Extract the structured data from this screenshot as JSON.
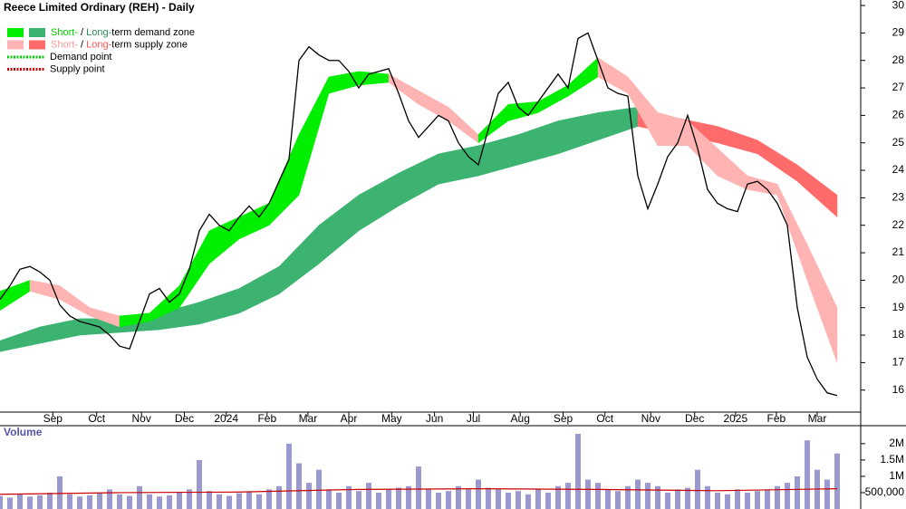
{
  "chart_data": [
    {
      "type": "line",
      "title": "Reece Limited Ordinary (REH) - Daily",
      "color": "#000000",
      "legend": {
        "position": "upper left",
        "items": [
          {
            "swatches": [
              "#00ee00",
              "#3cb371"
            ],
            "parts": [
              {
                "text": "Short-",
                "color": "#00cc00"
              },
              {
                "text": " / "
              },
              {
                "text": "Long-",
                "color": "#2e8b57"
              },
              {
                "text": "term demand zone"
              }
            ]
          },
          {
            "swatches": [
              "#ffb3b3",
              "#ff6b6b"
            ],
            "parts": [
              {
                "text": "Short-",
                "color": "#ff9999"
              },
              {
                "text": " / "
              },
              {
                "text": "Long-",
                "color": "#ff5555"
              },
              {
                "text": "term supply zone"
              }
            ]
          },
          {
            "line": "#00cc00",
            "parts": [
              {
                "text": "Demand point"
              }
            ]
          },
          {
            "line": "#cc0000",
            "parts": [
              {
                "text": "Supply point"
              }
            ]
          }
        ]
      },
      "x": [
        0,
        1,
        2,
        3,
        4,
        5,
        6,
        7,
        8,
        9,
        10,
        11,
        12,
        13,
        14,
        15,
        16,
        17,
        18,
        19,
        20,
        21,
        22,
        23,
        24,
        25,
        26,
        27,
        28,
        29,
        30,
        31,
        32,
        33,
        34,
        35,
        36,
        37,
        38,
        39,
        40,
        41,
        42,
        43,
        44,
        45,
        46,
        47,
        48,
        49,
        50,
        51,
        52,
        53,
        54,
        55,
        56,
        57,
        58,
        59,
        60,
        61,
        62,
        63,
        64,
        65,
        66,
        67,
        68,
        69,
        70,
        71,
        72,
        73,
        74,
        75,
        76,
        77,
        78,
        79,
        80,
        81,
        82,
        83,
        84
      ],
      "values": [
        19.3,
        19.8,
        20.4,
        20.5,
        20.3,
        20.0,
        19.1,
        18.7,
        18.5,
        18.4,
        18.3,
        18.0,
        17.6,
        17.5,
        18.5,
        19.5,
        19.7,
        19.2,
        19.5,
        20.4,
        21.8,
        22.4,
        22.0,
        21.8,
        22.3,
        22.7,
        22.3,
        22.8,
        23.6,
        24.4,
        28.0,
        28.5,
        28.2,
        28.0,
        28.0,
        27.6,
        27.0,
        27.5,
        27.6,
        27.7,
        26.8,
        25.8,
        25.2,
        25.6,
        26.0,
        25.8,
        25.0,
        24.5,
        24.2,
        25.5,
        26.8,
        27.2,
        26.3,
        26.0,
        26.5,
        27.0,
        27.5,
        27.0,
        28.8,
        29.0,
        28.0,
        27.0,
        26.8,
        26.7,
        23.8,
        22.6,
        23.5,
        24.5,
        25.0,
        26.0,
        24.8,
        23.3,
        22.8,
        22.6,
        22.5,
        23.5,
        23.6,
        23.3,
        22.8,
        22.0,
        19.0,
        17.2,
        16.4,
        15.9,
        15.8
      ],
      "bands": [
        {
          "x": [
            0,
            4,
            8,
            12,
            16,
            20,
            24,
            28,
            32,
            36,
            40,
            44,
            48,
            52,
            56,
            60,
            64,
            68,
            72,
            76,
            80,
            84
          ],
          "upper": [
            17.8,
            18.3,
            18.6,
            18.6,
            18.8,
            19.2,
            19.7,
            20.5,
            22.0,
            23.1,
            23.9,
            24.6,
            24.9,
            25.3,
            25.8,
            26.1,
            26.3,
            25.9,
            25.6,
            25.1,
            24.2,
            23.1
          ],
          "lower": [
            17.4,
            17.7,
            18.0,
            18.1,
            18.2,
            18.4,
            18.8,
            19.5,
            20.6,
            21.8,
            22.7,
            23.5,
            23.8,
            24.2,
            24.6,
            25.1,
            25.6,
            25.3,
            25.0,
            24.6,
            23.6,
            22.3
          ],
          "colors": [
            "#3cb371",
            "#3cb371",
            "#3cb371",
            "#3cb371",
            "#3cb371",
            "#3cb371",
            "#3cb371",
            "#3cb371",
            "#3cb371",
            "#3cb371",
            "#3cb371",
            "#3cb371",
            "#3cb371",
            "#3cb371",
            "#3cb371",
            "#3cb371",
            "#ff6b6b",
            "#ff6b6b",
            "#ff6b6b",
            "#ff6b6b",
            "#ff6b6b"
          ]
        },
        {
          "x": [
            0,
            3,
            6,
            9,
            12,
            15,
            18,
            21,
            24,
            27,
            30,
            33,
            36,
            39,
            42,
            45,
            48,
            51,
            54,
            57,
            60,
            63,
            66,
            69,
            72,
            75,
            78,
            81,
            84
          ],
          "upper": [
            19.6,
            20.0,
            19.8,
            19.0,
            18.7,
            18.8,
            19.8,
            21.8,
            22.3,
            22.8,
            25.3,
            27.4,
            27.6,
            27.5,
            26.9,
            26.3,
            25.3,
            26.4,
            26.5,
            27.1,
            28.1,
            27.4,
            26.1,
            25.8,
            24.8,
            23.8,
            23.5,
            21.3,
            19.0
          ],
          "lower": [
            18.9,
            19.6,
            19.3,
            18.7,
            18.3,
            18.5,
            19.0,
            20.6,
            21.5,
            22.0,
            23.1,
            26.8,
            27.1,
            27.2,
            26.4,
            25.8,
            25.0,
            25.8,
            26.1,
            26.7,
            27.4,
            26.8,
            24.9,
            24.9,
            23.8,
            23.3,
            23.1,
            20.0,
            17.0
          ],
          "colors": [
            "#00ee00",
            "#ffb3b3",
            "#ffb3b3",
            "#ffb3b3",
            "#00ee00",
            "#00ee00",
            "#00ee00",
            "#00ee00",
            "#00ee00",
            "#00ee00",
            "#00ee00",
            "#00ee00",
            "#00ee00",
            "#ffb3b3",
            "#ffb3b3",
            "#ffb3b3",
            "#00ee00",
            "#00ee00",
            "#00ee00",
            "#00ee00",
            "#ffb3b3",
            "#ffb3b3",
            "#ffb3b3",
            "#ffb3b3",
            "#ffb3b3",
            "#ffb3b3",
            "#ffb3b3",
            "#ffb3b3"
          ]
        }
      ],
      "xlim": [
        0,
        85
      ],
      "xticks": [
        {
          "value": 5.3,
          "label": "Sep"
        },
        {
          "value": 9.7,
          "label": "Oct"
        },
        {
          "value": 14.2,
          "label": "Nov"
        },
        {
          "value": 18.5,
          "label": "Dec"
        },
        {
          "value": 22.7,
          "label": "2024"
        },
        {
          "value": 26.8,
          "label": "Feb"
        },
        {
          "value": 30.9,
          "label": "Mar"
        },
        {
          "value": 35,
          "label": "Apr"
        },
        {
          "value": 39.3,
          "label": "May"
        },
        {
          "value": 43.6,
          "label": "Jun"
        },
        {
          "value": 47.5,
          "label": "Jul"
        },
        {
          "value": 52.2,
          "label": "Aug"
        },
        {
          "value": 56.5,
          "label": "Sep"
        },
        {
          "value": 60.7,
          "label": "Oct"
        },
        {
          "value": 65.3,
          "label": "Nov"
        },
        {
          "value": 69.7,
          "label": "Dec"
        },
        {
          "value": 73.8,
          "label": "2025"
        },
        {
          "value": 77.9,
          "label": "Feb"
        },
        {
          "value": 82,
          "label": "Mar"
        }
      ],
      "ylim": [
        15.2,
        30.2
      ],
      "yticks": [
        16,
        17,
        18,
        19,
        20,
        21,
        22,
        23,
        24,
        25,
        26,
        27,
        28,
        29,
        30
      ],
      "grid": false
    },
    {
      "type": "bar",
      "title": "Volume",
      "color": "#9a9ad0",
      "x": [
        0,
        1,
        2,
        3,
        4,
        5,
        6,
        7,
        8,
        9,
        10,
        11,
        12,
        13,
        14,
        15,
        16,
        17,
        18,
        19,
        20,
        21,
        22,
        23,
        24,
        25,
        26,
        27,
        28,
        29,
        30,
        31,
        32,
        33,
        34,
        35,
        36,
        37,
        38,
        39,
        40,
        41,
        42,
        43,
        44,
        45,
        46,
        47,
        48,
        49,
        50,
        51,
        52,
        53,
        54,
        55,
        56,
        57,
        58,
        59,
        60,
        61,
        62,
        63,
        64,
        65,
        66,
        67,
        68,
        69,
        70,
        71,
        72,
        73,
        74,
        75,
        76,
        77,
        78,
        79,
        80,
        81,
        82,
        83,
        84
      ],
      "values": [
        400000,
        350000,
        450000,
        380000,
        420000,
        500000,
        1000000,
        450000,
        380000,
        420000,
        500000,
        600000,
        450000,
        400000,
        700000,
        450000,
        380000,
        420000,
        500000,
        600000,
        1500000,
        550000,
        450000,
        400000,
        480000,
        520000,
        450000,
        600000,
        700000,
        2000000,
        1400000,
        800000,
        1200000,
        600000,
        500000,
        700000,
        550000,
        800000,
        500000,
        600000,
        650000,
        700000,
        1300000,
        600000,
        500000,
        550000,
        700000,
        600000,
        900000,
        650000,
        600000,
        500000,
        550000,
        450000,
        600000,
        500000,
        700000,
        800000,
        2300000,
        900000,
        800000,
        600000,
        550000,
        700000,
        900000,
        800000,
        700000,
        500000,
        600000,
        650000,
        1200000,
        700000,
        500000,
        450000,
        600000,
        500000,
        550000,
        600000,
        700000,
        800000,
        1000000,
        2100000,
        1200000,
        900000,
        1700000
      ],
      "average": {
        "color": "#cc0000",
        "x": [
          0,
          12,
          24,
          36,
          48,
          60,
          72,
          84
        ],
        "values": [
          450000,
          500000,
          520000,
          600000,
          620000,
          600000,
          560000,
          620000
        ]
      },
      "xlim": [
        0,
        85
      ],
      "ylim": [
        0,
        2550000
      ],
      "yticks": [
        {
          "value": 2000000,
          "label": "2M"
        },
        {
          "value": 1500000,
          "label": "1.5M"
        },
        {
          "value": 1000000,
          "label": "1M"
        },
        {
          "value": 500000,
          "label": "500,000"
        }
      ]
    }
  ]
}
